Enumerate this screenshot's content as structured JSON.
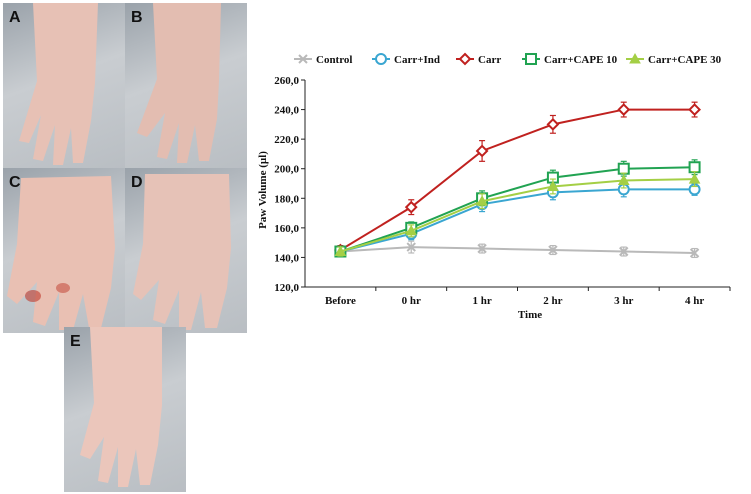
{
  "panels": [
    {
      "label": "A"
    },
    {
      "label": "B"
    },
    {
      "label": "C"
    },
    {
      "label": "D"
    },
    {
      "label": "E"
    }
  ],
  "chart_data": {
    "type": "line",
    "title": "",
    "xlabel": "Time",
    "ylabel": "Paw Volume (µl)",
    "categories": [
      "Before",
      "0 hr",
      "1 hr",
      "2 hr",
      "3 hr",
      "4 hr"
    ],
    "yticks": [
      "120,0",
      "140,0",
      "160,0",
      "180,0",
      "200,0",
      "220,0",
      "240,0",
      "260,0"
    ],
    "ylim": [
      120,
      260
    ],
    "legend_position": "top",
    "grid": false,
    "series": [
      {
        "name": "Control",
        "color": "#b9b9b9",
        "marker": "x",
        "values": [
          144,
          147,
          146,
          145,
          144,
          143
        ],
        "errors": [
          3,
          4,
          3,
          3,
          3,
          3
        ]
      },
      {
        "name": "Carr+Ind",
        "color": "#3aa6d1",
        "marker": "circle",
        "values": [
          144,
          156,
          176,
          184,
          186,
          186
        ],
        "errors": [
          3,
          4,
          5,
          5,
          5,
          4
        ]
      },
      {
        "name": "Carr",
        "color": "#c0211f",
        "marker": "diamond",
        "values": [
          145,
          174,
          212,
          230,
          240,
          240
        ],
        "errors": [
          3,
          5,
          7,
          6,
          5,
          5
        ]
      },
      {
        "name": "Carr+CAPE 10",
        "color": "#21a352",
        "marker": "square",
        "values": [
          144,
          160,
          180,
          194,
          200,
          201
        ],
        "errors": [
          3,
          4,
          5,
          5,
          5,
          5
        ]
      },
      {
        "name": "Carr+CAPE 30",
        "color": "#a4cf45",
        "marker": "triangle",
        "values": [
          144,
          158,
          178,
          188,
          192,
          193
        ],
        "errors": [
          3,
          4,
          5,
          5,
          5,
          5
        ]
      }
    ]
  }
}
